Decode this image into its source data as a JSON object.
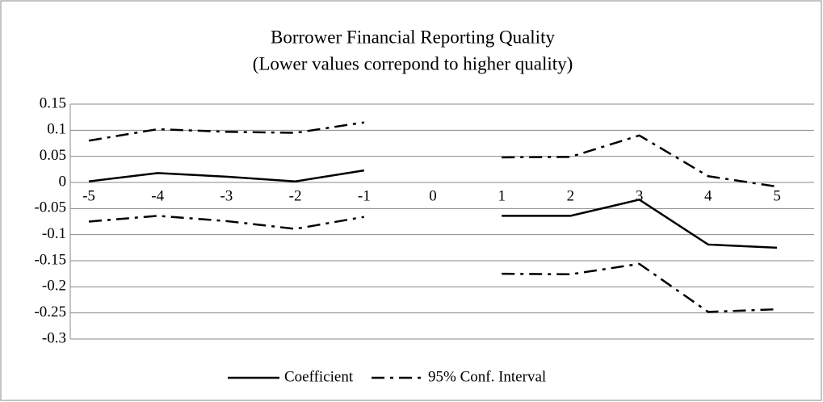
{
  "chart_data": {
    "type": "line",
    "title": "Borrower Financial Reporting Quality",
    "subtitle": "(Lower values correpond to higher quality)",
    "categories": [
      "-5",
      "-4",
      "-3",
      "-2",
      "-1",
      "0",
      "1",
      "2",
      "3",
      "4",
      "5"
    ],
    "series": [
      {
        "name": "Coefficient",
        "color": "#000000",
        "style": "solid",
        "values": [
          0.002,
          0.018,
          0.011,
          0.002,
          0.023,
          null,
          -0.064,
          -0.064,
          -0.033,
          -0.119,
          -0.125
        ]
      },
      {
        "name": "95% Conf. Interval",
        "color": "#000000",
        "style": "dash-dot",
        "upper": [
          0.08,
          0.102,
          0.097,
          0.095,
          0.115,
          null,
          0.048,
          0.049,
          0.09,
          0.012,
          -0.008
        ],
        "lower": [
          -0.075,
          -0.064,
          -0.074,
          -0.089,
          -0.066,
          null,
          -0.175,
          -0.176,
          -0.156,
          -0.248,
          -0.243
        ]
      }
    ],
    "ylim": [
      -0.3,
      0.15
    ],
    "yticks": [
      0.15,
      0.1,
      0.05,
      0,
      -0.05,
      -0.1,
      -0.15,
      -0.2,
      -0.25,
      -0.3
    ],
    "grid": true,
    "legend": "bottom"
  }
}
